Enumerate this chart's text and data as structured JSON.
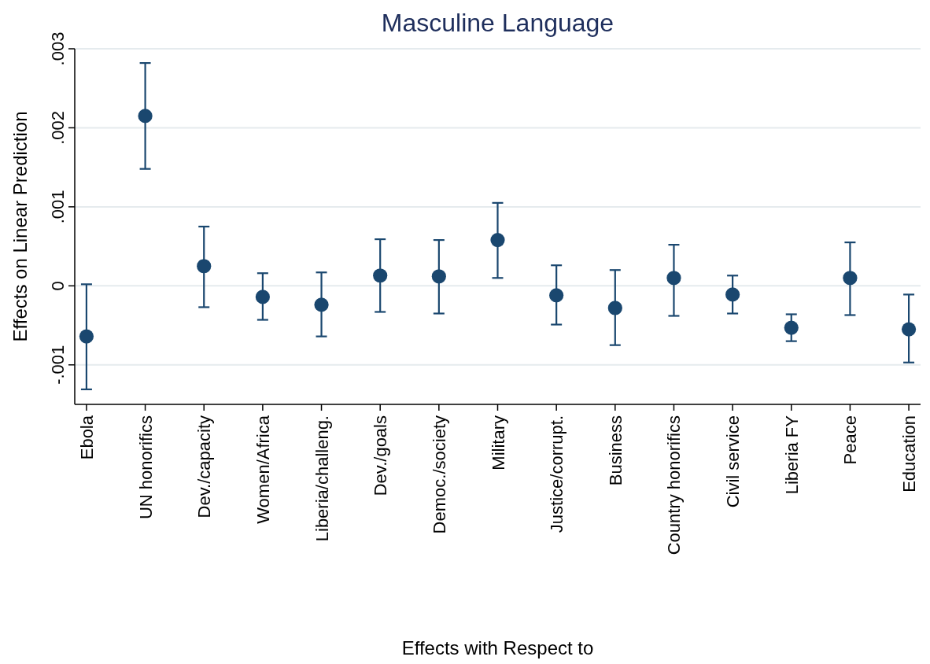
{
  "chart_data": {
    "type": "scatter",
    "title": "Masculine Language",
    "xlabel": "Effects with Respect to",
    "ylabel": "Effects on Linear Prediction",
    "categories": [
      "Ebola",
      "UN honorifics",
      "Dev./capacity",
      "Women/Africa",
      "Liberia/challeng.",
      "Dev./goals",
      "Democ./society",
      "Military",
      "Justice/corrupt.",
      "Business",
      "Country honorifics",
      "Civil service",
      "Liberia FY",
      "Peace",
      "Education"
    ],
    "series": [
      {
        "color": "#1a476f",
        "values": [
          -0.00064,
          0.00215,
          0.00025,
          -0.00014,
          -0.00024,
          0.00013,
          0.00012,
          0.00058,
          -0.00012,
          -0.00028,
          0.0001,
          -0.00011,
          -0.00053,
          0.0001,
          -0.00055
        ],
        "errors": [
          [
            -0.00131,
            2e-05
          ],
          [
            0.00148,
            0.00282
          ],
          [
            -0.00027,
            0.00075
          ],
          [
            -0.00043,
            0.00016
          ],
          [
            -0.00064,
            0.00017
          ],
          [
            -0.00033,
            0.00059
          ],
          [
            -0.00035,
            0.00058
          ],
          [
            0.0001,
            0.00105
          ],
          [
            -0.00049,
            0.00026
          ],
          [
            -0.00075,
            0.0002
          ],
          [
            -0.00038,
            0.00052
          ],
          [
            -0.00035,
            0.00013
          ],
          [
            -0.0007,
            -0.00036
          ],
          [
            -0.00037,
            0.00055
          ],
          [
            -0.00097,
            -0.00011
          ]
        ]
      }
    ],
    "ylim": [
      -0.0015,
      0.003
    ],
    "yticks": [
      {
        "value": -0.001,
        "label": "-.001"
      },
      0,
      {
        "value": 0.001,
        "label": ".001"
      },
      {
        "value": 0.002,
        "label": ".002"
      },
      {
        "value": 0.003,
        "label": ".003"
      }
    ],
    "grid": "y",
    "marker": "circle"
  }
}
